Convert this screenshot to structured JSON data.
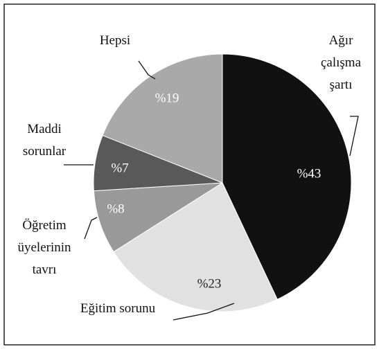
{
  "chart_data": {
    "type": "pie",
    "categories": [
      "Ağır\nçalışma\nşartı",
      "Eğitim sorunu",
      "Öğretim\nüyelerinin\ntavrı",
      "Maddi\nsorunlar",
      "Hepsi"
    ],
    "values": [
      43,
      23,
      8,
      7,
      19
    ],
    "value_labels": [
      "%43",
      "%23",
      "%8",
      "%7",
      "%19"
    ],
    "colors": [
      "#111111",
      "#e1e1e1",
      "#999999",
      "#595959",
      "#a9a9a9"
    ],
    "label_colors": [
      "#ffffff",
      "#222222",
      "#ffffff",
      "#ffffff",
      "#ffffff"
    ]
  }
}
